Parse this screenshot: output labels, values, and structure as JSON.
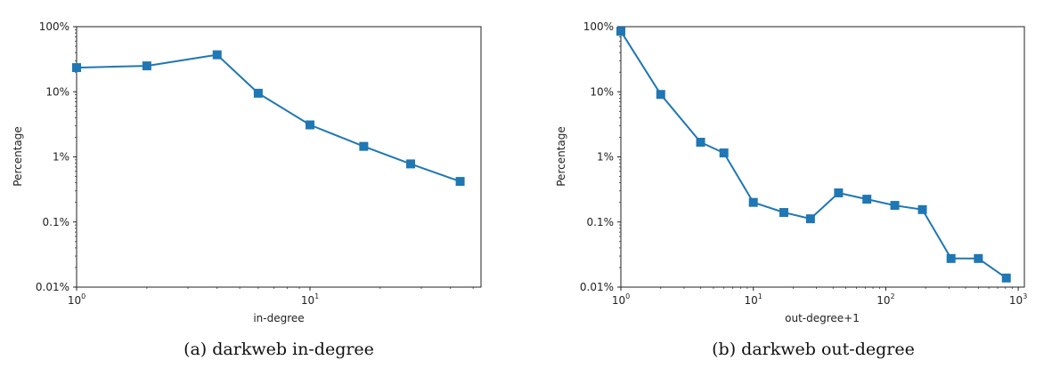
{
  "chart_data": [
    {
      "type": "line",
      "caption": "(a) darkweb in-degree",
      "xlabel": "in-degree",
      "ylabel": "Percentage",
      "xscale": "log",
      "yscale": "log",
      "xlim": [
        1,
        54
      ],
      "ylim": [
        0.01,
        100
      ],
      "xticks": [
        {
          "base": "10",
          "exp": "0",
          "value": 1
        },
        {
          "base": "10",
          "exp": "1",
          "value": 10
        }
      ],
      "yticks": [
        {
          "label": "100%",
          "value": 100
        },
        {
          "label": "10%",
          "value": 10
        },
        {
          "label": "1%",
          "value": 1
        },
        {
          "label": "0.1%",
          "value": 0.1
        },
        {
          "label": "0.01%",
          "value": 0.01
        }
      ],
      "grid": false,
      "color": "#1f77b4",
      "marker": "square",
      "x": [
        1,
        2,
        4,
        6,
        10,
        17,
        27,
        44
      ],
      "y": [
        23.5,
        25,
        37,
        9.5,
        3.1,
        1.45,
        0.78,
        0.42
      ]
    },
    {
      "type": "line",
      "caption": "(b) darkweb out-degree",
      "xlabel": "out-degree+1",
      "ylabel": "Percentage",
      "xscale": "log",
      "yscale": "log",
      "xlim": [
        1,
        1050
      ],
      "ylim": [
        0.01,
        100
      ],
      "xticks": [
        {
          "base": "10",
          "exp": "0",
          "value": 1
        },
        {
          "base": "10",
          "exp": "1",
          "value": 10
        },
        {
          "base": "10",
          "exp": "2",
          "value": 100
        },
        {
          "base": "10",
          "exp": "3",
          "value": 1000
        }
      ],
      "yticks": [
        {
          "label": "100%",
          "value": 100
        },
        {
          "label": "10%",
          "value": 10
        },
        {
          "label": "1%",
          "value": 1
        },
        {
          "label": "0.1%",
          "value": 0.1
        },
        {
          "label": "0.01%",
          "value": 0.01
        }
      ],
      "grid": false,
      "color": "#1f77b4",
      "marker": "square",
      "x": [
        1,
        2,
        4,
        6,
        10,
        17,
        27,
        44,
        72,
        117,
        189,
        311,
        500,
        813
      ],
      "y": [
        85,
        9.1,
        1.68,
        1.15,
        0.2,
        0.14,
        0.112,
        0.28,
        0.224,
        0.18,
        0.155,
        0.0275,
        0.0275,
        0.0138
      ]
    }
  ]
}
